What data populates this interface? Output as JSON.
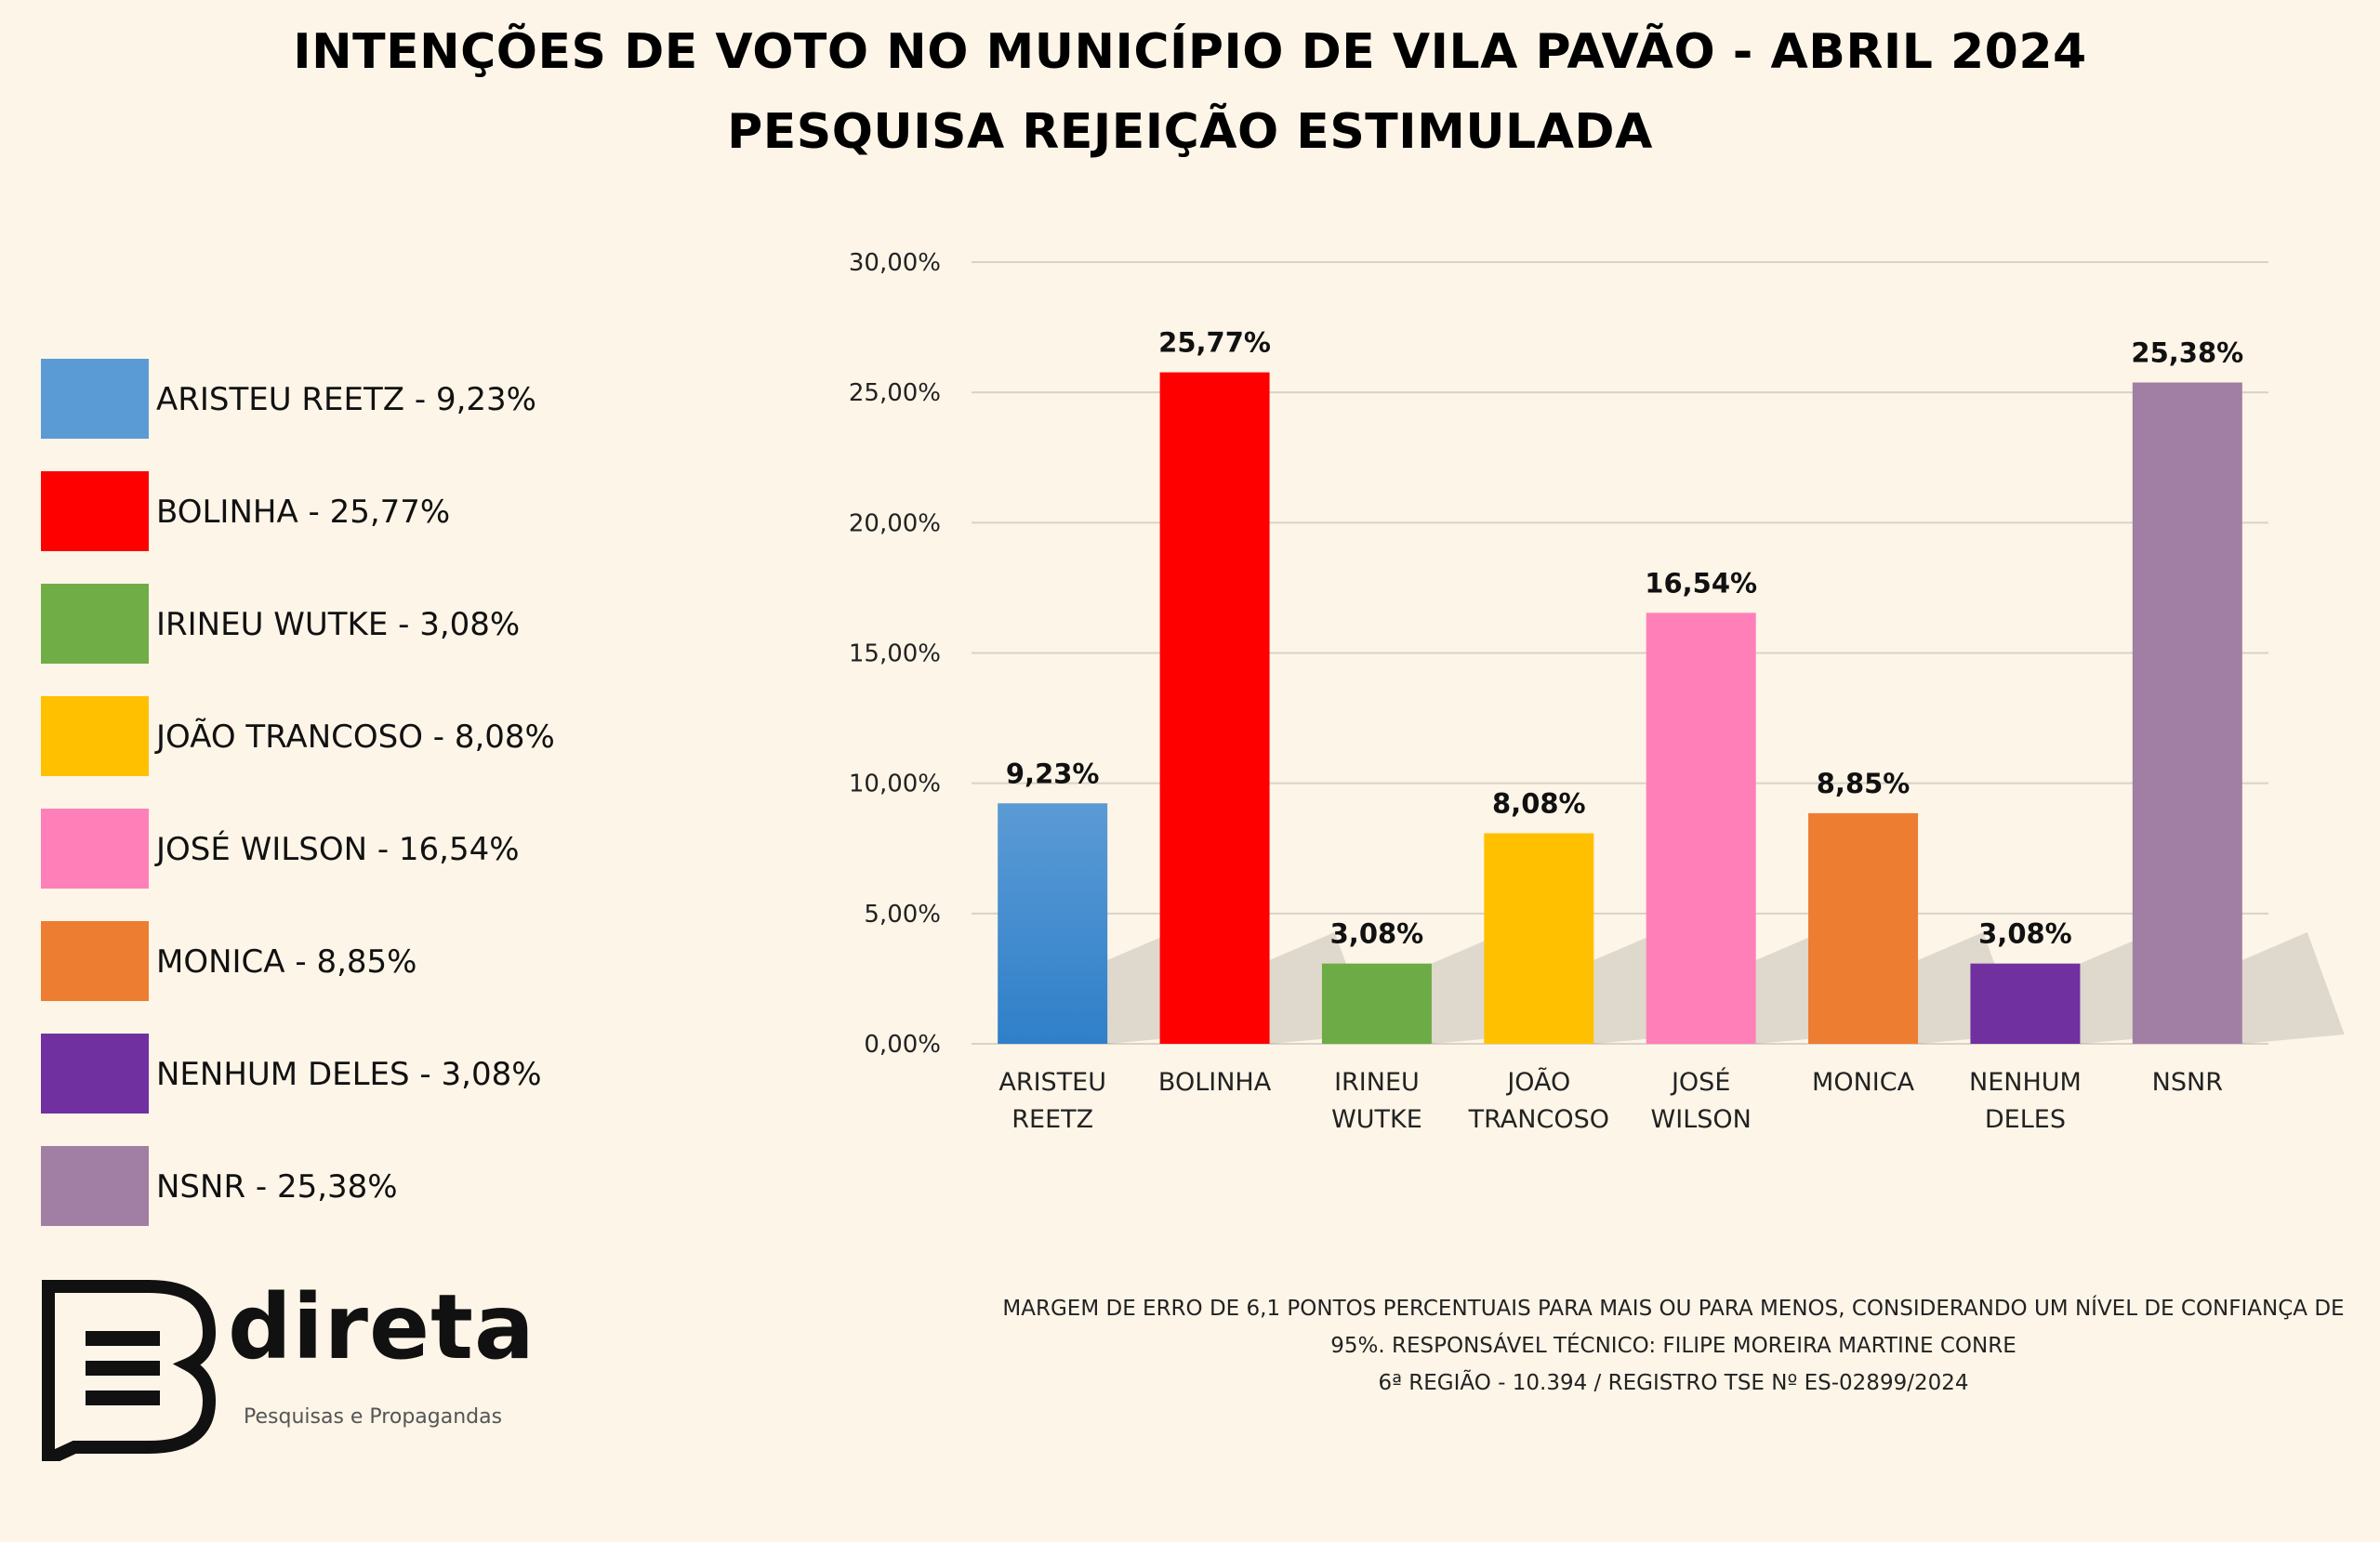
{
  "chart_data": {
    "type": "bar",
    "title": "INTENÇÕES DE VOTO NO MUNICÍPIO DE VILA PAVÃO - ABRIL 2024",
    "subtitle": "PESQUISA REJEIÇÃO ESTIMULADA",
    "categories": [
      [
        "ARISTEU",
        "REETZ"
      ],
      [
        "BOLINHA"
      ],
      [
        "IRINEU",
        "WUTKE"
      ],
      [
        "JOÃO",
        "TRANCOSO"
      ],
      [
        "JOSÉ",
        "WILSON"
      ],
      [
        "MONICA"
      ],
      [
        "NENHUM",
        "DELES"
      ],
      [
        "NSNR"
      ]
    ],
    "values": [
      9.23,
      25.77,
      3.08,
      8.08,
      16.54,
      8.85,
      3.08,
      25.38
    ],
    "value_labels": [
      "9,23%",
      "25,77%",
      "3,08%",
      "8,08%",
      "16,54%",
      "8,85%",
      "3,08%",
      "25,38%"
    ],
    "colors": [
      "#4a90d6",
      "#ff0000",
      "#6cab45",
      "#ffc000",
      "#ff80b8",
      "#ed7d31",
      "#7030a0",
      "#a17ea3"
    ],
    "ylim": [
      0,
      30
    ],
    "yticks": [
      "0,00%",
      "5,00%",
      "10,00%",
      "15,00%",
      "20,00%",
      "25,00%",
      "30,00%"
    ],
    "ytick_values": [
      0,
      5,
      10,
      15,
      20,
      25,
      30
    ],
    "grid": true,
    "legend_position": "left",
    "xlabel": "",
    "ylabel": ""
  },
  "legend": [
    {
      "label": "ARISTEU REETZ - 9,23%",
      "color": "#5b9bd5"
    },
    {
      "label": "BOLINHA - 25,77%",
      "color": "#ff0000"
    },
    {
      "label": "IRINEU WUTKE - 3,08%",
      "color": "#70ad47"
    },
    {
      "label": "JOÃO TRANCOSO - 8,08%",
      "color": "#ffc000"
    },
    {
      "label": "JOSÉ WILSON - 16,54%",
      "color": "#ff80b8"
    },
    {
      "label": "MONICA - 8,85%",
      "color": "#ed7d31"
    },
    {
      "label": "NENHUM DELES - 3,08%",
      "color": "#7030a0"
    },
    {
      "label": "NSNR - 25,38%",
      "color": "#a17ea3"
    }
  ],
  "logo": {
    "name": "direta",
    "tagline": "Pesquisas e Propagandas",
    "icon": "speech-bubble-b-logo"
  },
  "footnote": {
    "line1": "MARGEM DE ERRO DE 6,1 PONTOS PERCENTUAIS PARA MAIS OU PARA MENOS, CONSIDERANDO UM NÍVEL DE CONFIANÇA DE",
    "line2": "95%. RESPONSÁVEL TÉCNICO: FILIPE MOREIRA MARTINE CONRE",
    "line3": "6ª REGIÃO - 10.394 / REGISTRO TSE Nº ES-02899/2024"
  }
}
